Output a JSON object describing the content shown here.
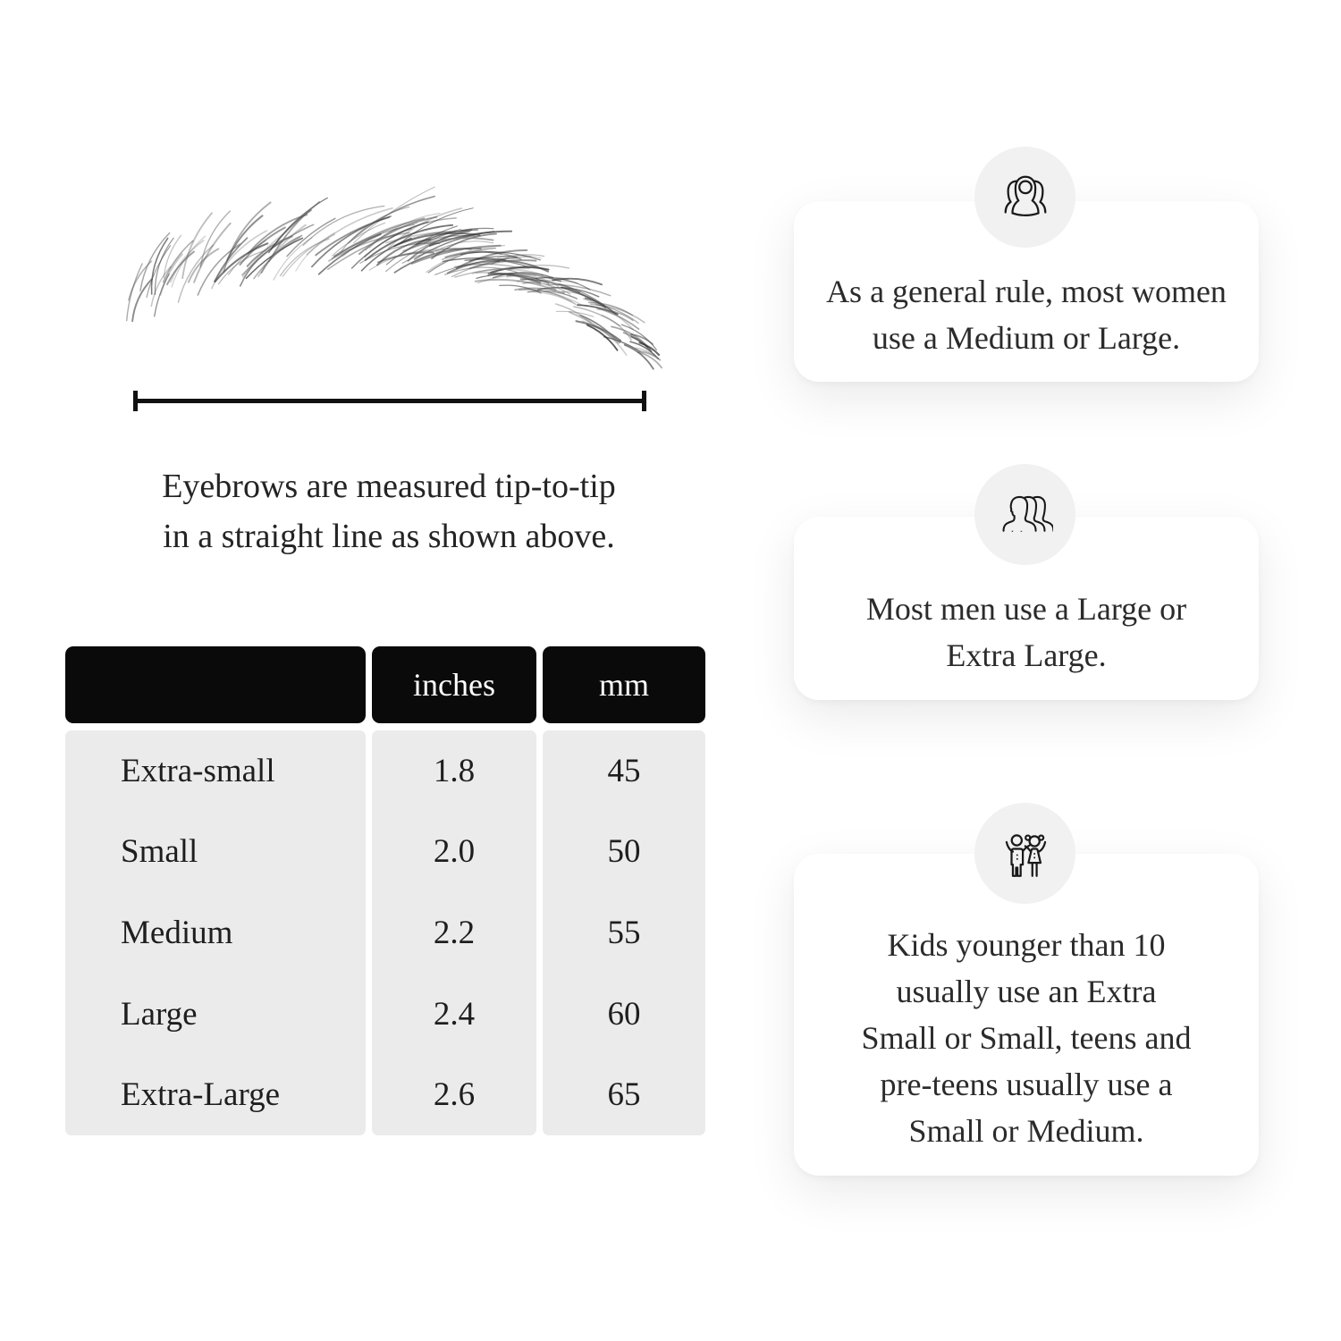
{
  "measurement": {
    "caption_lines": [
      "Eyebrows are measured tip-to-tip",
      "in a straight line as shown above."
    ]
  },
  "table": {
    "headers": [
      "",
      "inches",
      "mm"
    ],
    "rows": [
      {
        "label": "Extra-small",
        "inches": "1.8",
        "mm": "45"
      },
      {
        "label": "Small",
        "inches": "2.0",
        "mm": "50"
      },
      {
        "label": "Medium",
        "inches": "2.2",
        "mm": "55"
      },
      {
        "label": "Large",
        "inches": "2.4",
        "mm": "60"
      },
      {
        "label": "Extra-Large",
        "inches": "2.6",
        "mm": "65"
      }
    ]
  },
  "cards": [
    {
      "icon": "women-group-icon",
      "lines": [
        "As a general rule, most women",
        "use a Medium or Large."
      ]
    },
    {
      "icon": "men-group-icon",
      "lines": [
        "Most men use a Large or",
        "Extra Large."
      ]
    },
    {
      "icon": "kids-icon",
      "lines": [
        "Kids younger than 10",
        "usually use an Extra",
        "Small or Small, teens and",
        "pre-teens usually use a",
        "Small or Medium."
      ]
    }
  ],
  "colors": {
    "page_bg": "#ffffff",
    "header_bg": "#0a0a0a",
    "header_text": "#ffffff",
    "table_body_bg": "#ebebeb",
    "card_bg": "#ffffff",
    "icon_circle_bg": "#f1f1f1",
    "text": "#272727",
    "line": "#111111"
  }
}
